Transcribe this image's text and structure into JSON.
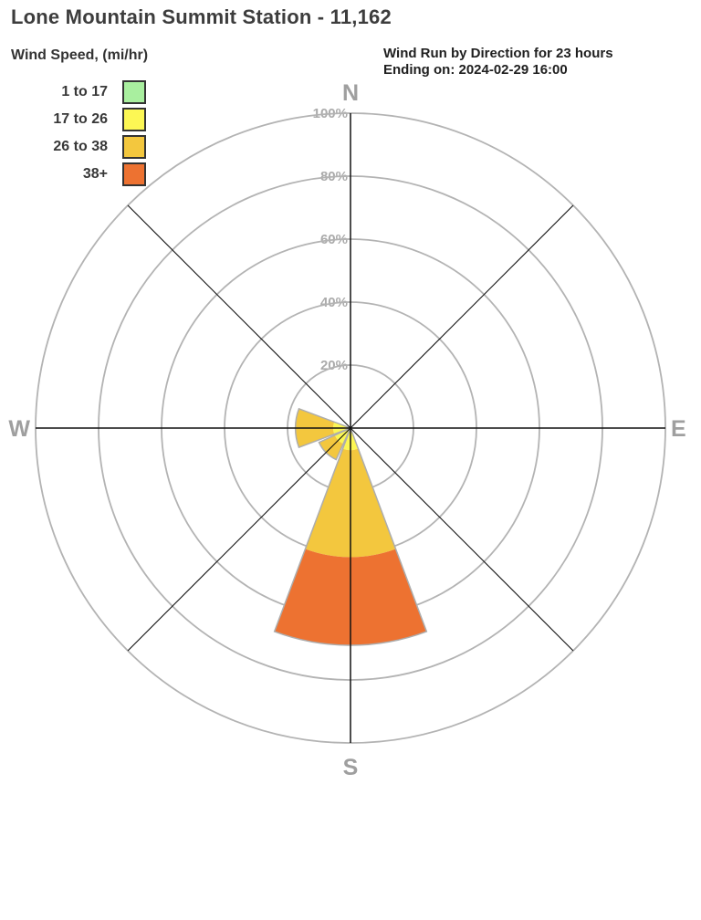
{
  "page": {
    "title": "Lone Mountain Summit Station - 11,162"
  },
  "header": {
    "legend_title": "Wind Speed, (mi/hr)",
    "chart_title_line1": "Wind Run by Direction for 23 hours",
    "chart_title_line2": "Ending on: 2024-02-29 16:00"
  },
  "chart_data": {
    "type": "windrose",
    "title": "Wind Run by Direction for 23 hours",
    "ending_on": "2024-02-29 16:00",
    "hours_shown": "23",
    "units": "mi/hr",
    "compass_labels": {
      "n": "N",
      "e": "E",
      "s": "S",
      "w": "W"
    },
    "ring_ticks_pct": [
      20,
      40,
      60,
      80,
      100
    ],
    "ring_tick_labels": [
      "20%",
      "40%",
      "60%",
      "80%",
      "100%"
    ],
    "speed_bins": [
      {
        "label": "1 to 17",
        "color": "#a9ef9f"
      },
      {
        "label": "17 to 26",
        "color": "#fcf754"
      },
      {
        "label": "26 to 38",
        "color": "#f3c73e"
      },
      {
        "label": "38+",
        "color": "#ed7231"
      }
    ],
    "directions": [
      "N",
      "NE",
      "E",
      "SE",
      "S",
      "SW",
      "W",
      "NW"
    ],
    "series_pct_by_direction": {
      "N": [
        0,
        0,
        0,
        0
      ],
      "NE": [
        0,
        0,
        0,
        0
      ],
      "E": [
        0,
        0,
        0,
        0
      ],
      "SE": [
        0,
        0,
        0,
        0
      ],
      "S": [
        0,
        7,
        34,
        28
      ],
      "SW": [
        0,
        5.5,
        5.5,
        0
      ],
      "W": [
        0,
        5.5,
        12,
        0
      ],
      "NW": [
        0,
        0,
        0,
        0
      ]
    },
    "colors": {
      "ring": "#b3b3b3",
      "axis": "#111111",
      "wedge_outline": "#adadad",
      "ring_label": "#ababab",
      "compass": "#9f9f9f"
    }
  }
}
